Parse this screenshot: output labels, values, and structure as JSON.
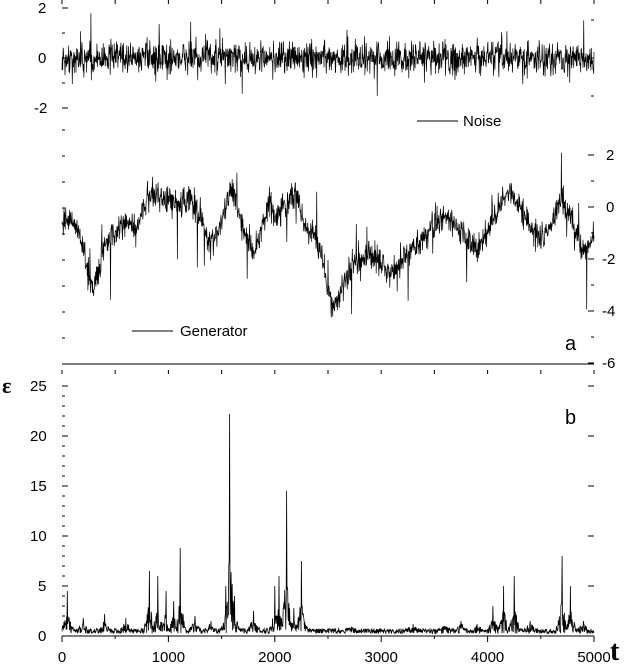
{
  "chart_data": [
    {
      "type": "line",
      "panel": "a",
      "panel_label": "a",
      "x_range": [
        0,
        5000
      ],
      "series": [
        {
          "name": "Noise",
          "axis": "left",
          "ylim": [
            -2.5,
            2.3
          ],
          "ticks": [
            2,
            0,
            -2
          ],
          "tick_labels": [
            "2",
            "0",
            "-2"
          ],
          "color": "#000000",
          "character": "dense white noise, amplitude about ±1.5, spikes to ±2",
          "y_envelope_points": [
            [
              0,
              0.0
            ],
            [
              1000,
              0.0
            ],
            [
              2000,
              0.0
            ],
            [
              3000,
              0.0
            ],
            [
              4000,
              0.0
            ],
            [
              5000,
              0.0
            ]
          ]
        },
        {
          "name": "Generator",
          "axis": "right",
          "ylim": [
            -6,
            3
          ],
          "ticks": [
            2,
            0,
            -2,
            -4,
            -6
          ],
          "tick_labels": [
            "2",
            "0",
            "-2",
            "-4",
            "-6"
          ],
          "color": "#000000",
          "trend_points": [
            [
              0,
              -0.5
            ],
            [
              150,
              -0.8
            ],
            [
              250,
              -2.5
            ],
            [
              300,
              -3.2
            ],
            [
              400,
              -1.5
            ],
            [
              500,
              -1.0
            ],
            [
              600,
              -0.5
            ],
            [
              700,
              -0.8
            ],
            [
              800,
              0.3
            ],
            [
              900,
              0.5
            ],
            [
              1000,
              0.2
            ],
            [
              1100,
              0.0
            ],
            [
              1200,
              0.3
            ],
            [
              1300,
              -0.3
            ],
            [
              1400,
              -1.5
            ],
            [
              1500,
              -0.5
            ],
            [
              1550,
              0.3
            ],
            [
              1600,
              0.8
            ],
            [
              1650,
              -0.2
            ],
            [
              1700,
              -0.8
            ],
            [
              1800,
              -1.8
            ],
            [
              1900,
              -0.5
            ],
            [
              1950,
              0.3
            ],
            [
              2000,
              -0.5
            ],
            [
              2100,
              0.2
            ],
            [
              2200,
              0.6
            ],
            [
              2300,
              -1.0
            ],
            [
              2350,
              -1.0
            ],
            [
              2450,
              -2.0
            ],
            [
              2500,
              -3.2
            ],
            [
              2550,
              -3.8
            ],
            [
              2600,
              -3.5
            ],
            [
              2700,
              -2.5
            ],
            [
              2800,
              -2.0
            ],
            [
              2900,
              -1.8
            ],
            [
              3000,
              -2.2
            ],
            [
              3100,
              -2.5
            ],
            [
              3200,
              -2.0
            ],
            [
              3300,
              -1.5
            ],
            [
              3400,
              -1.2
            ],
            [
              3500,
              -0.8
            ],
            [
              3600,
              -0.3
            ],
            [
              3700,
              -0.6
            ],
            [
              3800,
              -1.2
            ],
            [
              3900,
              -1.6
            ],
            [
              4000,
              -1.0
            ],
            [
              4100,
              0.0
            ],
            [
              4200,
              0.7
            ],
            [
              4300,
              0.0
            ],
            [
              4400,
              -0.8
            ],
            [
              4500,
              -1.3
            ],
            [
              4600,
              -0.5
            ],
            [
              4700,
              0.3
            ],
            [
              4800,
              -0.5
            ],
            [
              4900,
              -1.8
            ],
            [
              5000,
              -1.0
            ]
          ]
        }
      ],
      "legend": [
        {
          "label": "Noise",
          "placement": "upper-right"
        },
        {
          "label": "Generator",
          "placement": "lower-left"
        }
      ]
    },
    {
      "type": "line",
      "panel": "b",
      "panel_label": "b",
      "ylabel": "ε",
      "xlabel": "t",
      "xlim": [
        0,
        5000
      ],
      "ylim": [
        0,
        25
      ],
      "x_ticks": [
        0,
        1000,
        2000,
        3000,
        4000,
        5000
      ],
      "x_tick_labels": [
        "0",
        "1000",
        "2000",
        "3000",
        "4000",
        "5000"
      ],
      "y_ticks": [
        0,
        5,
        10,
        15,
        20,
        25
      ],
      "y_tick_labels": [
        "0",
        "5",
        "10",
        "15",
        "20",
        "25"
      ],
      "series": [
        {
          "name": "",
          "color": "#000000",
          "baseline": 0.5,
          "peaks": [
            [
              50,
              4.5
            ],
            [
              200,
              1.8
            ],
            [
              400,
              2.2
            ],
            [
              600,
              1.8
            ],
            [
              820,
              6.5
            ],
            [
              900,
              6.0
            ],
            [
              980,
              4.5
            ],
            [
              1050,
              3.5
            ],
            [
              1110,
              8.8
            ],
            [
              1250,
              2.0
            ],
            [
              1400,
              1.5
            ],
            [
              1540,
              5.0
            ],
            [
              1575,
              22.2
            ],
            [
              1620,
              4.0
            ],
            [
              1800,
              2.5
            ],
            [
              2000,
              5.0
            ],
            [
              2040,
              6.0
            ],
            [
              2110,
              14.5
            ],
            [
              2180,
              2.8
            ],
            [
              2250,
              7.5
            ],
            [
              2700,
              0.8
            ],
            [
              3300,
              1.2
            ],
            [
              3600,
              1.0
            ],
            [
              3750,
              1.5
            ],
            [
              3900,
              1.2
            ],
            [
              4050,
              3.0
            ],
            [
              4150,
              5.0
            ],
            [
              4250,
              6.0
            ],
            [
              4400,
              1.5
            ],
            [
              4700,
              8.0
            ],
            [
              4780,
              5.0
            ],
            [
              4900,
              1.5
            ]
          ]
        }
      ]
    }
  ]
}
